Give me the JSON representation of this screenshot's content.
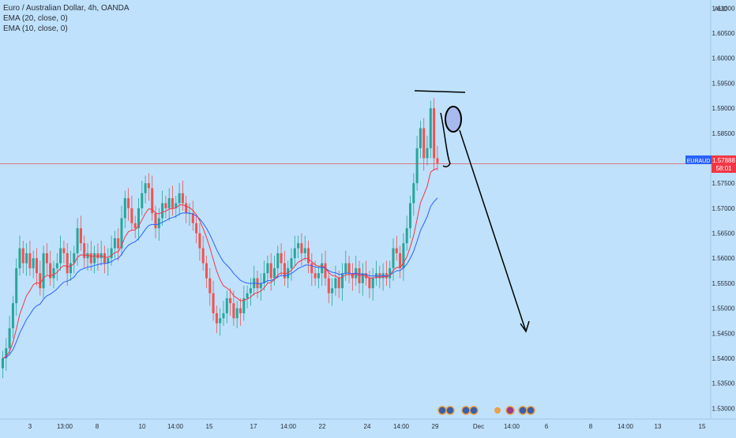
{
  "legend": {
    "title": "Euro / Australian Dollar, 4h, OANDA",
    "ema20": "EMA (20, close, 0)",
    "ema10": "EMA (10, close, 0)"
  },
  "price_axis": {
    "currency": "AUD",
    "ticks": [
      "1.61000",
      "1.60500",
      "1.60000",
      "1.59500",
      "1.59000",
      "1.58500",
      "1.58000",
      "1.57500",
      "1.57000",
      "1.56500",
      "1.56000",
      "1.55500",
      "1.55000",
      "1.54500",
      "1.54000",
      "1.53500",
      "1.53000"
    ]
  },
  "time_axis": {
    "ticks": [
      "3",
      "13:00",
      "8",
      "10",
      "14:00",
      "15",
      "17",
      "14:00",
      "22",
      "24",
      "14:00",
      "29",
      "Dec",
      "14:00",
      "6",
      "8",
      "14:00",
      "13",
      "15"
    ]
  },
  "price_label": {
    "symbol": "EURAUD",
    "price": "1.57888",
    "countdown": "58:01"
  },
  "colors": {
    "background": "#bfe1fb",
    "bull": "#26a69a",
    "bear": "#ef5350",
    "ema20": "#2962ff",
    "ema10": "#f23645",
    "price_line": "#f23645",
    "axis_text": "#2a2e39"
  },
  "chart_data": {
    "type": "candlestick",
    "y_range": [
      1.528,
      1.611
    ],
    "closes": [
      1.54,
      1.542,
      1.546,
      1.551,
      1.558,
      1.562,
      1.559,
      1.561,
      1.558,
      1.56,
      1.557,
      1.554,
      1.561,
      1.559,
      1.556,
      1.558,
      1.559,
      1.562,
      1.561,
      1.557,
      1.559,
      1.561,
      1.566,
      1.563,
      1.56,
      1.561,
      1.559,
      1.561,
      1.56,
      1.561,
      1.559,
      1.56,
      1.562,
      1.564,
      1.562,
      1.568,
      1.572,
      1.57,
      1.567,
      1.566,
      1.57,
      1.573,
      1.575,
      1.574,
      1.569,
      1.566,
      1.568,
      1.571,
      1.57,
      1.572,
      1.57,
      1.571,
      1.573,
      1.571,
      1.569,
      1.569,
      1.567,
      1.565,
      1.562,
      1.559,
      1.556,
      1.553,
      1.549,
      1.547,
      1.548,
      1.549,
      1.552,
      1.551,
      1.548,
      1.55,
      1.549,
      1.552,
      1.553,
      1.554,
      1.556,
      1.554,
      1.555,
      1.557,
      1.559,
      1.556,
      1.558,
      1.561,
      1.559,
      1.556,
      1.558,
      1.56,
      1.562,
      1.563,
      1.561,
      1.562,
      1.559,
      1.557,
      1.556,
      1.557,
      1.559,
      1.556,
      1.553,
      1.554,
      1.556,
      1.554,
      1.557,
      1.559,
      1.557,
      1.556,
      1.558,
      1.555,
      1.557,
      1.556,
      1.554,
      1.556,
      1.557,
      1.556,
      1.557,
      1.556,
      1.558,
      1.562,
      1.561,
      1.558,
      1.563,
      1.566,
      1.571,
      1.575,
      1.582,
      1.586,
      1.58,
      1.582,
      1.59,
      1.58,
      1.579
    ],
    "ema20_label": "EMA (20, close, 0)",
    "ema10_label": "EMA (10, close, 0)",
    "last_price": 1.57888,
    "annotation": "drawn line, circle and downward arrow"
  }
}
